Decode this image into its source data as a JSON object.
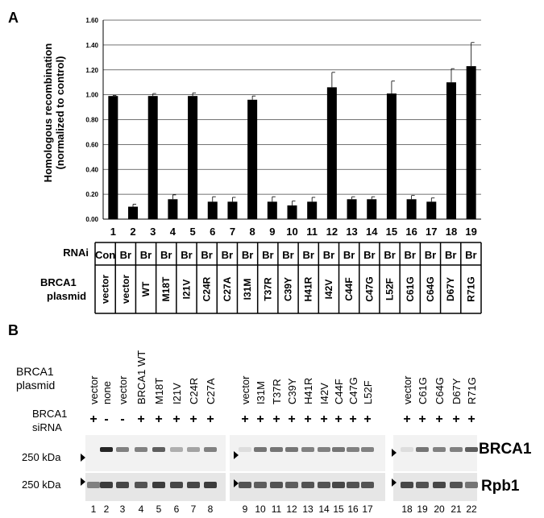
{
  "panelA": {
    "label": "A",
    "chart_data": {
      "type": "bar",
      "ylabel_line1": "Homologous recombination",
      "ylabel_line2": "(normalized to control)",
      "ylim": [
        0,
        1.6
      ],
      "yticks": [
        "0.00",
        "0.20",
        "0.40",
        "0.60",
        "0.80",
        "1.00",
        "1.20",
        "1.40",
        "1.60"
      ],
      "grid": true,
      "categories": [
        "1",
        "2",
        "3",
        "4",
        "5",
        "6",
        "7",
        "8",
        "9",
        "10",
        "11",
        "12",
        "13",
        "14",
        "15",
        "16",
        "17",
        "18",
        "19"
      ],
      "values": [
        0.99,
        0.1,
        0.99,
        0.16,
        0.99,
        0.14,
        0.14,
        0.96,
        0.14,
        0.11,
        0.14,
        1.06,
        0.16,
        0.16,
        1.01,
        0.16,
        0.14,
        1.1,
        1.23
      ],
      "errors": [
        0.005,
        0.02,
        0.02,
        0.035,
        0.025,
        0.04,
        0.035,
        0.03,
        0.04,
        0.035,
        0.035,
        0.12,
        0.02,
        0.02,
        0.1,
        0.03,
        0.03,
        0.11,
        0.19
      ],
      "bar_color": "#000000"
    },
    "table": {
      "rnai_label": "RNAi",
      "plasmid_label_line1": "BRCA1",
      "plasmid_label_line2": "plasmid",
      "rnai": [
        "Con",
        "Br",
        "Br",
        "Br",
        "Br",
        "Br",
        "Br",
        "Br",
        "Br",
        "Br",
        "Br",
        "Br",
        "Br",
        "Br",
        "Br",
        "Br",
        "Br",
        "Br",
        "Br"
      ],
      "plasmid": [
        "vector",
        "vector",
        "WT",
        "M18T",
        "I21V",
        "C24R",
        "C27A",
        "I31M",
        "T37R",
        "C39Y",
        "H41R",
        "I42V",
        "C44F",
        "C47G",
        "L52F",
        "C61G",
        "C64G",
        "D67Y",
        "R71G"
      ]
    }
  },
  "panelB": {
    "label": "B",
    "plasmid_label_line1": "BRCA1",
    "plasmid_label_line2": "plasmid",
    "sirna_label_line1": "BRCA1",
    "sirna_label_line2": "siRNA",
    "group1_plasmids": [
      "vector",
      "none",
      "vector",
      "BRCA1 WT",
      "M18T",
      "I21V",
      "C24R",
      "C27A"
    ],
    "group2_plasmids": [
      "vector",
      "I31M",
      "T37R",
      "C39Y",
      "H41R",
      "I42V",
      "C44F",
      "C47G",
      "L52F"
    ],
    "group3_plasmids": [
      "vector",
      "C61G",
      "C64G",
      "D67Y",
      "R71G"
    ],
    "sirna": [
      "+",
      "-",
      "-",
      "+",
      "+",
      "+",
      "+",
      "+",
      "+",
      "+",
      "+",
      "+",
      "+",
      "+",
      "+",
      "+",
      "+",
      "+",
      "+",
      "+",
      "+",
      "+"
    ],
    "lanes": [
      "1",
      "2",
      "3",
      "4",
      "5",
      "6",
      "7",
      "8",
      "9",
      "10",
      "11",
      "12",
      "13",
      "14",
      "15",
      "16",
      "17",
      "18",
      "19",
      "20",
      "21",
      "22"
    ],
    "marker1": "250 kDa",
    "marker2": "250 kDa",
    "band1": "BRCA1",
    "band2": "Rpb1",
    "brca1_intensity": [
      0.0,
      0.95,
      0.55,
      0.55,
      0.7,
      0.35,
      0.4,
      0.55,
      0.15,
      0.6,
      0.6,
      0.6,
      0.55,
      0.55,
      0.6,
      0.55,
      0.55,
      0.15,
      0.6,
      0.55,
      0.55,
      0.7
    ],
    "rpb1_intensity": [
      0.55,
      0.85,
      0.8,
      0.75,
      0.85,
      0.8,
      0.8,
      0.85,
      0.75,
      0.7,
      0.75,
      0.7,
      0.75,
      0.75,
      0.8,
      0.75,
      0.75,
      0.8,
      0.75,
      0.8,
      0.75,
      0.6
    ]
  }
}
